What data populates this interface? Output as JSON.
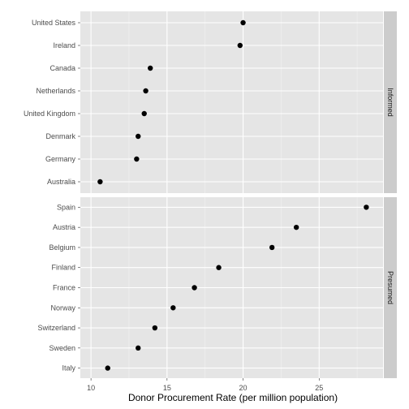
{
  "chart_data": {
    "type": "scatter",
    "xlabel": "Donor Procurement Rate (per million population)",
    "xlim": [
      9.3,
      29.2
    ],
    "xticks": [
      10,
      15,
      20,
      25
    ],
    "x_minor_breaks": [
      12.5,
      17.5,
      22.5,
      27.5
    ],
    "grid": true,
    "colors": {
      "panel_bg": "#e5e5e5",
      "grid_major": "#ffffff",
      "grid_minor": "#f2f2f2",
      "strip_bg": "#cccccc",
      "point": "#000000"
    },
    "panels": [
      {
        "strip": "Informed",
        "points": [
          {
            "country": "United States",
            "value": 20.0
          },
          {
            "country": "Ireland",
            "value": 19.8
          },
          {
            "country": "Canada",
            "value": 13.9
          },
          {
            "country": "Netherlands",
            "value": 13.6
          },
          {
            "country": "United Kingdom",
            "value": 13.5
          },
          {
            "country": "Denmark",
            "value": 13.1
          },
          {
            "country": "Germany",
            "value": 13.0
          },
          {
            "country": "Australia",
            "value": 10.6
          }
        ]
      },
      {
        "strip": "Presumed",
        "points": [
          {
            "country": "Spain",
            "value": 28.1
          },
          {
            "country": "Austria",
            "value": 23.5
          },
          {
            "country": "Belgium",
            "value": 21.9
          },
          {
            "country": "Finland",
            "value": 18.4
          },
          {
            "country": "France",
            "value": 16.8
          },
          {
            "country": "Norway",
            "value": 15.4
          },
          {
            "country": "Switzerland",
            "value": 14.2
          },
          {
            "country": "Sweden",
            "value": 13.1
          },
          {
            "country": "Italy",
            "value": 11.1
          }
        ]
      }
    ]
  }
}
